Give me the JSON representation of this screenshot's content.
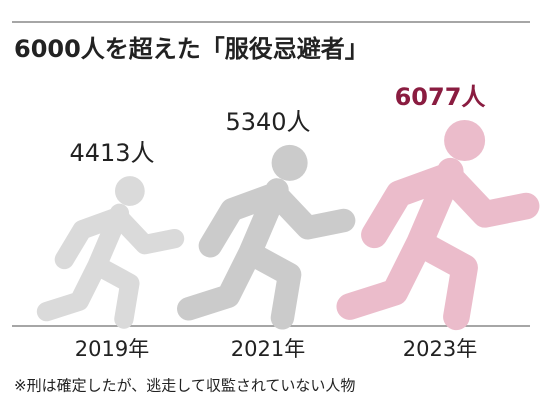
{
  "chart_data": {
    "type": "pictograph",
    "title": "6000人を超えた「服役忌避者」",
    "categories": [
      "2019年",
      "2021年",
      "2023年"
    ],
    "values": [
      4413,
      5340,
      6077
    ],
    "value_labels": [
      "4413人",
      "5340人",
      "6077人"
    ],
    "colors": [
      "#dadada",
      "#cbcbcb",
      "#ebbccb"
    ],
    "label_colors": [
      "#222222",
      "#222222",
      "#8a1c40"
    ],
    "note": "※刑は確定したが、逃走して収監されていない人物"
  }
}
